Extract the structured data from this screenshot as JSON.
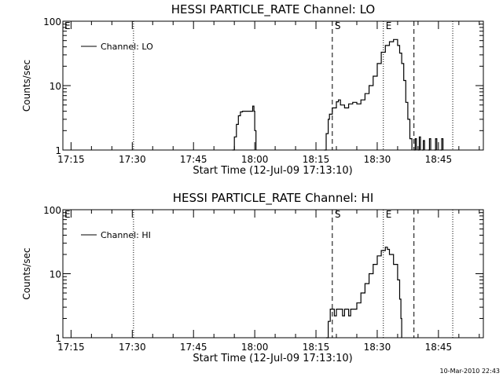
{
  "footer": {
    "timestamp": "10-Mar-2010 22:43"
  },
  "chart_data": [
    {
      "type": "line",
      "title": "HESSI PARTICLE_RATE Channel: LO",
      "xlabel": "Start Time (12-Jul-09 17:13:10)",
      "ylabel": "Counts/sec",
      "yscale": "log",
      "xlim": [
        "17:13",
        "18:56"
      ],
      "ylim": [
        1,
        100
      ],
      "xticks": [
        "17:15",
        "17:30",
        "17:45",
        "18:00",
        "18:15",
        "18:30",
        "18:45"
      ],
      "yticks": [
        {
          "value": 1,
          "label": "1"
        },
        {
          "value": 10,
          "label": "10"
        },
        {
          "value": 100,
          "label": "100"
        }
      ],
      "legend": {
        "position": "top-left",
        "label": "Channel: LO"
      },
      "corner_label": "E",
      "grid": false,
      "markers": [
        {
          "time": "17:30.3",
          "style": "dotted",
          "label": ""
        },
        {
          "time": "18:19",
          "style": "dashed",
          "label": "S"
        },
        {
          "time": "18:31.5",
          "style": "dotted",
          "label": "E"
        },
        {
          "time": "18:39",
          "style": "dashed",
          "label": ""
        },
        {
          "time": "18:48.5",
          "style": "dotted",
          "label": ""
        }
      ],
      "series": [
        {
          "name": "Channel: LO",
          "segments": [
            [
              [
                "17:54.5",
                1
              ],
              [
                "17:55",
                1.6
              ],
              [
                "17:55.5",
                2.5
              ],
              [
                "17:56",
                3.4
              ],
              [
                "17:56.5",
                3.9
              ],
              [
                "17:57",
                4
              ],
              [
                "17:58",
                4
              ],
              [
                "17:59",
                4
              ],
              [
                "17:59.5",
                4.8
              ],
              [
                "17:59.8",
                4
              ],
              [
                "18:00",
                2
              ],
              [
                "18:00.3",
                1
              ]
            ],
            [
              [
                "18:17",
                1
              ],
              [
                "18:17.5",
                1.8
              ],
              [
                "18:18",
                3
              ],
              [
                "18:18.3",
                3.6
              ],
              [
                "18:19",
                4.5
              ],
              [
                "18:20",
                5.6
              ],
              [
                "18:20.5",
                6
              ],
              [
                "18:21",
                5
              ],
              [
                "18:22",
                4.5
              ],
              [
                "18:23",
                5.2
              ],
              [
                "18:24",
                5.5
              ],
              [
                "18:25",
                5.2
              ],
              [
                "18:26",
                6
              ],
              [
                "18:27",
                7.5
              ],
              [
                "18:28",
                10
              ],
              [
                "18:29",
                14
              ],
              [
                "18:30",
                22
              ],
              [
                "18:31",
                33
              ],
              [
                "18:32",
                42
              ],
              [
                "18:33",
                48
              ],
              [
                "18:34",
                52
              ],
              [
                "18:35",
                42
              ],
              [
                "18:35.5",
                32
              ],
              [
                "18:36",
                22
              ],
              [
                "18:36.5",
                12
              ],
              [
                "18:37",
                5.5
              ],
              [
                "18:37.5",
                3
              ],
              [
                "18:38",
                1.5
              ],
              [
                "18:38.5",
                1
              ]
            ],
            [
              [
                "18:39",
                1
              ],
              [
                "18:39.3",
                1.5
              ],
              [
                "18:39.6",
                1
              ]
            ],
            [
              [
                "18:40",
                1
              ],
              [
                "18:40.3",
                1.6
              ],
              [
                "18:40.6",
                1
              ]
            ],
            [
              [
                "18:41",
                1
              ],
              [
                "18:41.3",
                1.4
              ],
              [
                "18:41.6",
                1
              ]
            ],
            [
              [
                "18:42.5",
                1
              ],
              [
                "18:42.8",
                1.5
              ],
              [
                "18:43.1",
                1
              ]
            ],
            [
              [
                "18:44",
                1
              ],
              [
                "18:44.3",
                1.5
              ],
              [
                "18:44.6",
                1
              ]
            ],
            [
              [
                "18:45.5",
                1
              ],
              [
                "18:45.8",
                1.5
              ],
              [
                "18:46.1",
                1
              ]
            ]
          ]
        }
      ]
    },
    {
      "type": "line",
      "title": "HESSI PARTICLE_RATE Channel: HI",
      "xlabel": "Start Time (12-Jul-09 17:13:10)",
      "ylabel": "Counts/sec",
      "yscale": "log",
      "xlim": [
        "17:13",
        "18:56"
      ],
      "ylim": [
        1,
        100
      ],
      "xticks": [
        "17:15",
        "17:30",
        "17:45",
        "18:00",
        "18:15",
        "18:30",
        "18:45"
      ],
      "yticks": [
        {
          "value": 1,
          "label": "1"
        },
        {
          "value": 10,
          "label": "10"
        },
        {
          "value": 100,
          "label": "100"
        }
      ],
      "legend": {
        "position": "top-left",
        "label": "Channel: HI"
      },
      "corner_label": "E",
      "grid": false,
      "markers": [
        {
          "time": "17:30.3",
          "style": "dotted",
          "label": ""
        },
        {
          "time": "18:19",
          "style": "dashed",
          "label": "S"
        },
        {
          "time": "18:31.5",
          "style": "dotted",
          "label": "E"
        },
        {
          "time": "18:39",
          "style": "dashed",
          "label": ""
        },
        {
          "time": "18:48.5",
          "style": "dotted",
          "label": ""
        }
      ],
      "series": [
        {
          "name": "Channel: HI",
          "segments": [
            [
              [
                "18:17.5",
                1
              ],
              [
                "18:18",
                1.8
              ],
              [
                "18:18.5",
                2.8
              ],
              [
                "18:19",
                2.8
              ],
              [
                "18:19.5",
                2.2
              ],
              [
                "18:20",
                2.8
              ],
              [
                "18:21",
                2.8
              ],
              [
                "18:21.5",
                2.2
              ],
              [
                "18:22",
                2.8
              ],
              [
                "18:23",
                2.2
              ],
              [
                "18:23.5",
                2.8
              ],
              [
                "18:24",
                2.8
              ],
              [
                "18:25",
                3.5
              ],
              [
                "18:26",
                5
              ],
              [
                "18:27",
                7
              ],
              [
                "18:28",
                10
              ],
              [
                "18:29",
                14
              ],
              [
                "18:30",
                19
              ],
              [
                "18:31",
                23
              ],
              [
                "18:32",
                26
              ],
              [
                "18:32.5",
                24
              ],
              [
                "18:33",
                20
              ],
              [
                "18:34",
                14
              ],
              [
                "18:35",
                8
              ],
              [
                "18:35.5",
                4
              ],
              [
                "18:35.8",
                2
              ],
              [
                "18:36",
                1
              ]
            ]
          ]
        }
      ]
    }
  ]
}
